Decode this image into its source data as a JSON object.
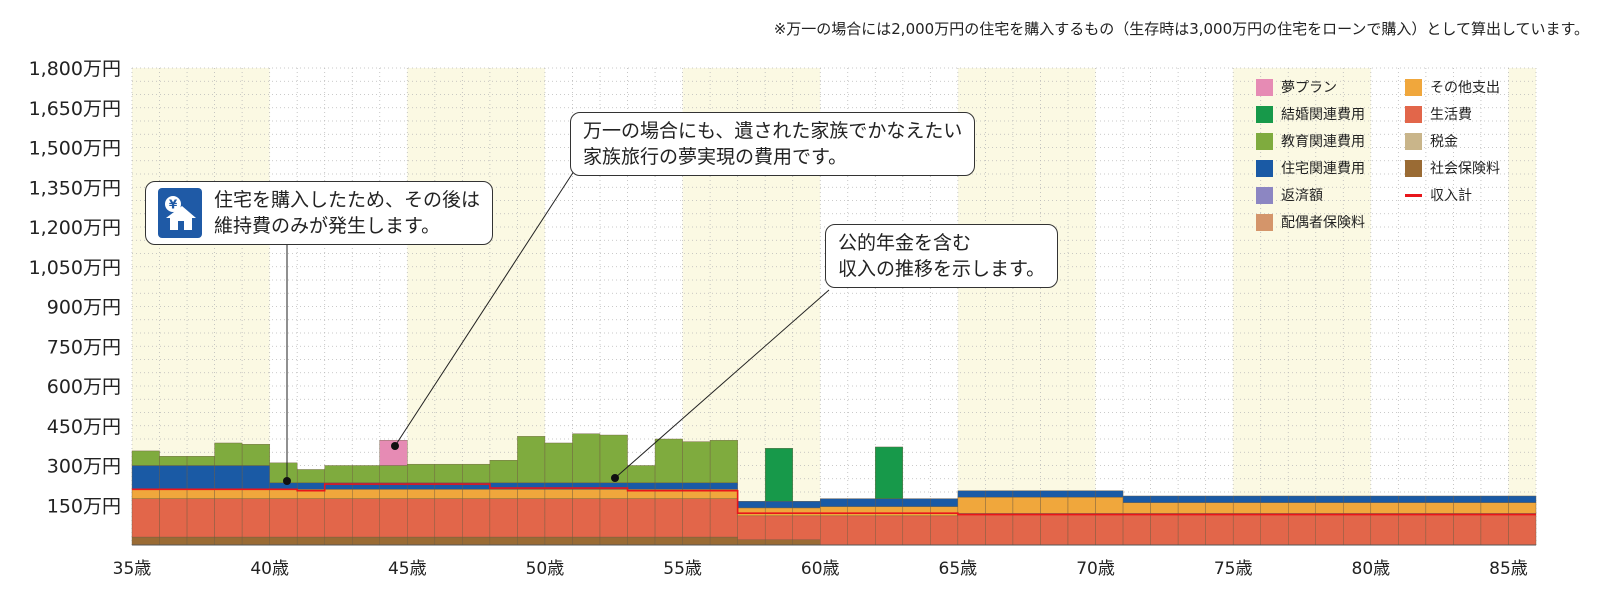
{
  "note": "※万一の場合には2,000万円の住宅を購入するもの（生存時は3,000万円の住宅をローンで購入）として算出しています。",
  "callouts": {
    "house": {
      "lines": [
        "住宅を購入したため、その後は",
        "維持費のみが発生します。"
      ],
      "icon": "house-yen-icon"
    },
    "dream": {
      "lines": [
        "万一の場合にも、遺された家族でかなえたい",
        "家族旅行の夢実現の費用です。"
      ]
    },
    "income": {
      "lines": [
        "公的年金を含む",
        "収入の推移を示します。"
      ]
    }
  },
  "chart_data": {
    "type": "bar",
    "stacked": true,
    "ylim": [
      0,
      1800
    ],
    "y_ticks": [
      150,
      300,
      450,
      600,
      750,
      900,
      1050,
      1200,
      1350,
      1500,
      1650,
      1800
    ],
    "y_tick_labels": [
      "150万円",
      "300万円",
      "450万円",
      "600万円",
      "750万円",
      "900万円",
      "1,050万円",
      "1,200万円",
      "1,350万円",
      "1,500万円",
      "1,650万円",
      "1,800万円"
    ],
    "x_range": [
      35,
      86
    ],
    "x_ticks": [
      35,
      40,
      45,
      50,
      55,
      60,
      65,
      70,
      75,
      80,
      85
    ],
    "x_tick_labels": [
      "35歳",
      "40歳",
      "45歳",
      "50歳",
      "55歳",
      "60歳",
      "65歳",
      "70歳",
      "75歳",
      "80歳",
      "85歳"
    ],
    "grid": true,
    "legend_position": "top-right",
    "ages": [
      35,
      36,
      37,
      38,
      39,
      40,
      41,
      42,
      43,
      44,
      45,
      46,
      47,
      48,
      49,
      50,
      51,
      52,
      53,
      54,
      55,
      56,
      57,
      58,
      59,
      60,
      61,
      62,
      63,
      64,
      65,
      66,
      67,
      68,
      69,
      70,
      71,
      72,
      73,
      74,
      75,
      76,
      77,
      78,
      79,
      80,
      81,
      82,
      83,
      84,
      85
    ],
    "series": [
      {
        "name": "社会保険料",
        "color": "#9a6b34",
        "values": [
          30,
          30,
          30,
          30,
          30,
          30,
          30,
          30,
          30,
          30,
          30,
          30,
          30,
          30,
          30,
          30,
          30,
          30,
          30,
          30,
          30,
          30,
          20,
          20,
          20,
          0,
          0,
          0,
          0,
          0,
          0,
          0,
          0,
          0,
          0,
          0,
          0,
          0,
          0,
          0,
          0,
          0,
          0,
          0,
          0,
          0,
          0,
          0,
          0,
          0,
          0
        ]
      },
      {
        "name": "税金",
        "color": "#c9b58a",
        "values": [
          0,
          0,
          0,
          0,
          0,
          0,
          0,
          0,
          0,
          0,
          0,
          0,
          0,
          0,
          0,
          0,
          0,
          0,
          0,
          0,
          0,
          0,
          0,
          0,
          0,
          0,
          0,
          0,
          0,
          0,
          0,
          0,
          0,
          0,
          0,
          0,
          0,
          0,
          0,
          0,
          0,
          0,
          0,
          0,
          0,
          0,
          0,
          0,
          0,
          0,
          0
        ]
      },
      {
        "name": "生活費",
        "color": "#e2664a",
        "values": [
          145,
          145,
          145,
          145,
          145,
          145,
          145,
          145,
          145,
          145,
          145,
          145,
          145,
          145,
          145,
          145,
          145,
          145,
          145,
          145,
          145,
          145,
          90,
          90,
          90,
          110,
          110,
          110,
          110,
          110,
          120,
          120,
          120,
          120,
          120,
          120,
          120,
          120,
          120,
          120,
          120,
          120,
          120,
          120,
          120,
          120,
          120,
          120,
          120,
          120,
          120
        ]
      },
      {
        "name": "その他支出",
        "color": "#f0a73c",
        "values": [
          35,
          35,
          35,
          35,
          35,
          35,
          35,
          35,
          35,
          35,
          35,
          35,
          35,
          35,
          35,
          35,
          35,
          35,
          35,
          35,
          35,
          35,
          30,
          30,
          30,
          35,
          35,
          35,
          35,
          35,
          60,
          60,
          60,
          60,
          60,
          60,
          40,
          40,
          40,
          40,
          40,
          40,
          40,
          40,
          40,
          40,
          40,
          40,
          40,
          40,
          40
        ]
      },
      {
        "name": "配偶者保険料",
        "color": "#d4956a",
        "values": [
          0,
          0,
          0,
          0,
          0,
          0,
          0,
          0,
          0,
          0,
          0,
          0,
          0,
          0,
          0,
          0,
          0,
          0,
          0,
          0,
          0,
          0,
          0,
          0,
          0,
          0,
          0,
          0,
          0,
          0,
          0,
          0,
          0,
          0,
          0,
          0,
          0,
          0,
          0,
          0,
          0,
          0,
          0,
          0,
          0,
          0,
          0,
          0,
          0,
          0,
          0
        ]
      },
      {
        "name": "返済額",
        "color": "#8c86c2",
        "values": [
          0,
          0,
          0,
          0,
          0,
          0,
          0,
          0,
          0,
          0,
          0,
          0,
          0,
          0,
          0,
          0,
          0,
          0,
          0,
          0,
          0,
          0,
          0,
          0,
          0,
          0,
          0,
          0,
          0,
          0,
          0,
          0,
          0,
          0,
          0,
          0,
          0,
          0,
          0,
          0,
          0,
          0,
          0,
          0,
          0,
          0,
          0,
          0,
          0,
          0,
          0
        ]
      },
      {
        "name": "住宅関連費用",
        "color": "#1a5aa5",
        "values": [
          90,
          90,
          90,
          90,
          90,
          25,
          25,
          25,
          25,
          25,
          25,
          25,
          25,
          25,
          25,
          25,
          25,
          25,
          25,
          25,
          25,
          25,
          25,
          25,
          25,
          30,
          30,
          30,
          30,
          30,
          25,
          25,
          25,
          25,
          25,
          25,
          25,
          25,
          25,
          25,
          25,
          25,
          25,
          25,
          25,
          25,
          25,
          25,
          25,
          25,
          25
        ]
      },
      {
        "name": "教育関連費用",
        "color": "#7fab3e",
        "values": [
          55,
          35,
          35,
          85,
          80,
          75,
          50,
          65,
          65,
          65,
          70,
          70,
          70,
          85,
          175,
          150,
          185,
          180,
          65,
          165,
          155,
          160,
          0,
          0,
          0,
          0,
          0,
          0,
          0,
          0,
          0,
          0,
          0,
          0,
          0,
          0,
          0,
          0,
          0,
          0,
          0,
          0,
          0,
          0,
          0,
          0,
          0,
          0,
          0,
          0,
          0
        ]
      },
      {
        "name": "結婚関連費用",
        "color": "#17994a",
        "values": [
          0,
          0,
          0,
          0,
          0,
          0,
          0,
          0,
          0,
          0,
          0,
          0,
          0,
          0,
          0,
          0,
          0,
          0,
          0,
          0,
          0,
          0,
          0,
          200,
          0,
          0,
          0,
          195,
          0,
          0,
          0,
          0,
          0,
          0,
          0,
          0,
          0,
          0,
          0,
          0,
          0,
          0,
          0,
          0,
          0,
          0,
          0,
          0,
          0,
          0,
          0
        ]
      },
      {
        "name": "夢プラン",
        "color": "#e68bb4",
        "values": [
          0,
          0,
          0,
          0,
          0,
          0,
          0,
          0,
          0,
          95,
          0,
          0,
          0,
          0,
          0,
          0,
          0,
          0,
          0,
          0,
          0,
          0,
          0,
          0,
          0,
          0,
          0,
          0,
          0,
          0,
          0,
          0,
          0,
          0,
          0,
          0,
          0,
          0,
          0,
          0,
          0,
          0,
          0,
          0,
          0,
          0,
          0,
          0,
          0,
          0,
          0
        ]
      }
    ],
    "income": {
      "name": "収入計",
      "color": "#e8161b",
      "values": [
        210,
        210,
        210,
        210,
        210,
        210,
        205,
        230,
        230,
        230,
        230,
        230,
        230,
        215,
        215,
        215,
        215,
        215,
        205,
        205,
        205,
        205,
        120,
        120,
        120,
        120,
        120,
        120,
        120,
        120,
        115,
        115,
        115,
        115,
        115,
        115,
        115,
        115,
        115,
        115,
        115,
        115,
        115,
        115,
        115,
        115,
        115,
        115,
        115,
        115,
        115
      ]
    },
    "legend": [
      "夢プラン",
      "結婚関連費用",
      "教育関連費用",
      "住宅関連費用",
      "返済額",
      "配偶者保険料",
      "その他支出",
      "生活費",
      "税金",
      "社会保険料",
      "収入計"
    ]
  }
}
